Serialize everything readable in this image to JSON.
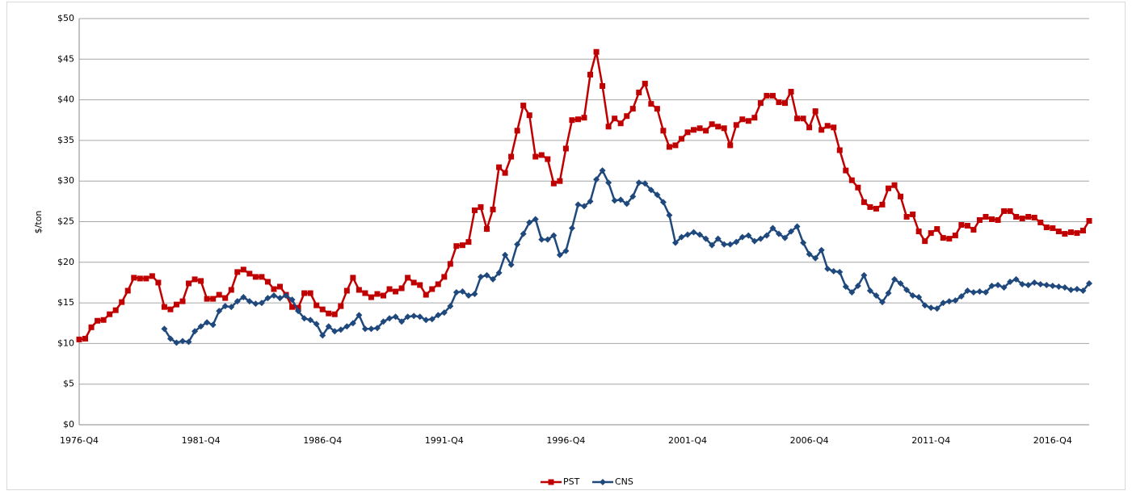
{
  "chart_data": {
    "type": "line",
    "y_label": "$/ton",
    "categories": [
      "1976-Q4",
      null,
      null,
      null,
      null,
      null,
      null,
      null,
      null,
      null,
      null,
      null,
      null,
      null,
      null,
      null,
      null,
      null,
      null,
      null,
      "1981-Q4",
      null,
      null,
      null,
      null,
      null,
      null,
      null,
      null,
      null,
      null,
      null,
      null,
      null,
      null,
      null,
      null,
      null,
      null,
      null,
      "1986-Q4",
      null,
      null,
      null,
      null,
      null,
      null,
      null,
      null,
      null,
      null,
      null,
      null,
      null,
      null,
      null,
      null,
      null,
      null,
      null,
      "1991-Q4",
      null,
      null,
      null,
      null,
      null,
      null,
      null,
      null,
      null,
      null,
      null,
      null,
      null,
      null,
      null,
      null,
      null,
      null,
      null,
      "1996-Q4",
      null,
      null,
      null,
      null,
      null,
      null,
      null,
      null,
      null,
      null,
      null,
      null,
      null,
      null,
      null,
      null,
      null,
      null,
      null,
      "2001-Q4",
      null,
      null,
      null,
      null,
      null,
      null,
      null,
      null,
      null,
      null,
      null,
      null,
      null,
      null,
      null,
      null,
      null,
      null,
      null,
      "2006-Q4",
      null,
      null,
      null,
      null,
      null,
      null,
      null,
      null,
      null,
      null,
      null,
      null,
      null,
      null,
      null,
      null,
      null,
      null,
      null,
      "2011-Q4",
      null,
      null,
      null,
      null,
      null,
      null,
      null,
      null,
      null,
      null,
      null,
      null,
      null,
      null,
      null,
      null,
      null,
      null,
      null,
      "2016-Q4",
      null,
      null,
      null,
      null,
      null,
      null
    ],
    "series": [
      {
        "name": "PST",
        "color": "#c00000",
        "marker": "square",
        "values": [
          10.5,
          10.6,
          12.0,
          12.8,
          12.9,
          13.6,
          14.1,
          15.1,
          16.5,
          18.1,
          18.0,
          18.0,
          18.3,
          17.5,
          14.5,
          14.2,
          14.8,
          15.2,
          17.4,
          17.9,
          17.7,
          15.5,
          15.5,
          16.0,
          15.6,
          16.6,
          18.8,
          19.1,
          18.6,
          18.2,
          18.2,
          17.6,
          16.7,
          17.0,
          16.0,
          14.5,
          14.4,
          16.2,
          16.2,
          14.7,
          14.2,
          13.7,
          13.6,
          14.6,
          16.5,
          18.1,
          16.6,
          16.2,
          15.7,
          16.1,
          15.9,
          16.7,
          16.4,
          16.8,
          18.1,
          17.5,
          17.2,
          16.0,
          16.7,
          17.3,
          18.2,
          19.8,
          22.0,
          22.1,
          22.5,
          26.4,
          26.8,
          24.1,
          26.5,
          31.7,
          31.0,
          33.0,
          36.2,
          39.3,
          38.1,
          33.0,
          33.2,
          32.7,
          29.7,
          30.0,
          34.0,
          37.5,
          37.6,
          37.8,
          43.1,
          45.9,
          41.7,
          36.7,
          37.7,
          37.1,
          38.0,
          38.9,
          40.9,
          42.0,
          39.5,
          38.9,
          36.2,
          34.2,
          34.4,
          35.2,
          36.0,
          36.3,
          36.5,
          36.2,
          37.0,
          36.7,
          36.5,
          34.4,
          36.9,
          37.6,
          37.4,
          37.8,
          39.6,
          40.5,
          40.5,
          39.7,
          39.6,
          41.0,
          37.7,
          37.7,
          36.6,
          38.6,
          36.3,
          36.8,
          36.6,
          33.8,
          31.3,
          30.1,
          29.2,
          27.4,
          26.8,
          26.6,
          27.1,
          29.1,
          29.5,
          28.1,
          25.6,
          25.9,
          23.8,
          22.6,
          23.6,
          24.1,
          23.0,
          22.9,
          23.3,
          24.6,
          24.5,
          24.0,
          25.2,
          25.6,
          25.3,
          25.2,
          26.3,
          26.3,
          25.6,
          25.4,
          25.6,
          25.5,
          24.9,
          24.3,
          24.2,
          23.8,
          23.5,
          23.7,
          23.6,
          23.9,
          25.1
        ]
      },
      {
        "name": "CNS",
        "color": "#1f497d",
        "marker": "diamond",
        "values": [
          null,
          null,
          null,
          null,
          null,
          null,
          null,
          null,
          null,
          null,
          null,
          null,
          null,
          null,
          11.8,
          10.6,
          10.1,
          10.3,
          10.2,
          11.5,
          12.1,
          12.6,
          12.3,
          14.0,
          14.6,
          14.5,
          15.2,
          15.7,
          15.2,
          14.9,
          15.0,
          15.6,
          15.9,
          15.6,
          15.9,
          15.4,
          14.0,
          13.1,
          12.9,
          12.4,
          11.0,
          12.1,
          11.5,
          11.7,
          12.1,
          12.5,
          13.5,
          11.8,
          11.8,
          11.9,
          12.7,
          13.1,
          13.3,
          12.7,
          13.3,
          13.4,
          13.3,
          12.9,
          13.0,
          13.5,
          13.8,
          14.6,
          16.3,
          16.4,
          15.9,
          16.1,
          18.2,
          18.4,
          17.9,
          18.7,
          20.9,
          19.7,
          22.2,
          23.5,
          24.9,
          25.3,
          22.8,
          22.8,
          23.3,
          20.9,
          21.4,
          24.2,
          27.1,
          26.9,
          27.5,
          30.2,
          31.3,
          29.8,
          27.6,
          27.7,
          27.2,
          28.1,
          29.8,
          29.7,
          28.9,
          28.3,
          27.4,
          25.8,
          22.4,
          23.1,
          23.4,
          23.7,
          23.4,
          22.9,
          22.1,
          22.9,
          22.2,
          22.2,
          22.5,
          23.1,
          23.3,
          22.6,
          22.9,
          23.3,
          24.2,
          23.5,
          23.0,
          23.8,
          24.4,
          22.4,
          21.0,
          20.5,
          21.5,
          19.2,
          18.9,
          18.8,
          17.0,
          16.3,
          17.1,
          18.4,
          16.5,
          15.9,
          15.1,
          16.2,
          17.9,
          17.4,
          16.6,
          15.9,
          15.7,
          14.7,
          14.4,
          14.3,
          15.0,
          15.2,
          15.3,
          15.8,
          16.5,
          16.3,
          16.4,
          16.3,
          17.1,
          17.2,
          16.9,
          17.6,
          17.9,
          17.3,
          17.2,
          17.5,
          17.3,
          17.2,
          17.1,
          17.0,
          16.9,
          16.6,
          16.7,
          16.5,
          17.4
        ]
      }
    ],
    "ylim": [
      0,
      50
    ],
    "yticks": [
      {
        "value": 0,
        "label": "$0"
      },
      {
        "value": 5,
        "label": "$5"
      },
      {
        "value": 10,
        "label": "$10"
      },
      {
        "value": 15,
        "label": "$15"
      },
      {
        "value": 20,
        "label": "$20"
      },
      {
        "value": 25,
        "label": "$25"
      },
      {
        "value": 30,
        "label": "$30"
      },
      {
        "value": 35,
        "label": "$35"
      },
      {
        "value": 40,
        "label": "$40"
      },
      {
        "value": 45,
        "label": "$45"
      },
      {
        "value": 50,
        "label": "$50"
      }
    ],
    "grid": true,
    "legend": "bottom"
  }
}
